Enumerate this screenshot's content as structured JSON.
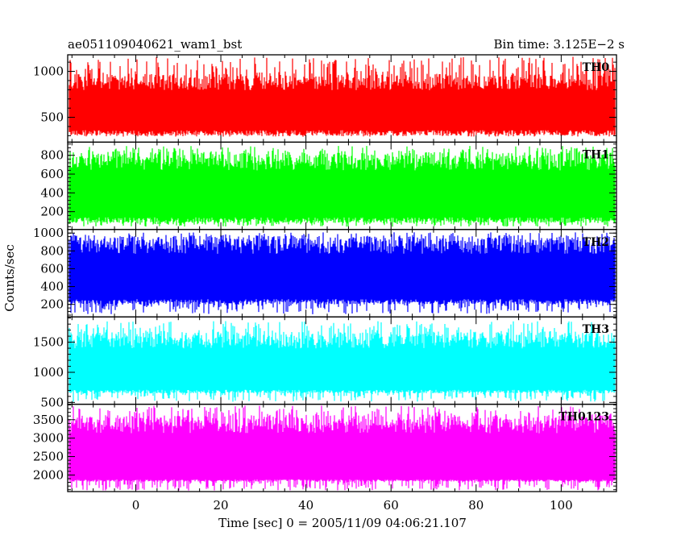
{
  "chart_data": {
    "type": "line",
    "title_left": "ae051109040621_wam1_bst",
    "title_right": "Bin time: 3.125E−2 s",
    "xlabel": "Time [sec] 0 = 2005/11/09 04:06:21.107",
    "ylabel": "Counts/sec",
    "xlim": [
      -16,
      113
    ],
    "x_data_range": [
      -15.6,
      112.5
    ],
    "bin_time": 0.03125,
    "x_ticks": [
      "0",
      "20",
      "40",
      "60",
      "80",
      "100"
    ],
    "panels": [
      {
        "name": "TH0",
        "color": "#ff0000",
        "ylim": [
          230,
          1180
        ],
        "y_ticks": [
          500,
          1000
        ],
        "approx_level": {
          "low": 290,
          "high": 1160,
          "base_low": 330,
          "base_high": 850
        }
      },
      {
        "name": "TH1",
        "color": "#00ff00",
        "ylim": [
          10,
          940
        ],
        "y_ticks": [
          200,
          400,
          600,
          800
        ],
        "approx_level": {
          "low": 40,
          "high": 900,
          "base_low": 110,
          "base_high": 700
        }
      },
      {
        "name": "TH2",
        "color": "#0000ff",
        "ylim": [
          60,
          1040
        ],
        "y_ticks": [
          200,
          400,
          600,
          800,
          1000
        ],
        "approx_level": {
          "low": 90,
          "high": 1010,
          "base_low": 230,
          "base_high": 830
        }
      },
      {
        "name": "TH3",
        "color": "#00ffff",
        "ylim": [
          470,
          1920
        ],
        "y_ticks": [
          500,
          1000,
          1500
        ],
        "approx_level": {
          "low": 510,
          "high": 1850,
          "base_low": 680,
          "base_high": 1480
        }
      },
      {
        "name": "TH0123",
        "color": "#ff00ff",
        "ylim": [
          1550,
          3920
        ],
        "y_ticks": [
          2000,
          2500,
          3000,
          3500
        ],
        "approx_level": {
          "low": 1580,
          "high": 3880,
          "base_low": 1850,
          "base_high": 3280
        }
      }
    ]
  }
}
